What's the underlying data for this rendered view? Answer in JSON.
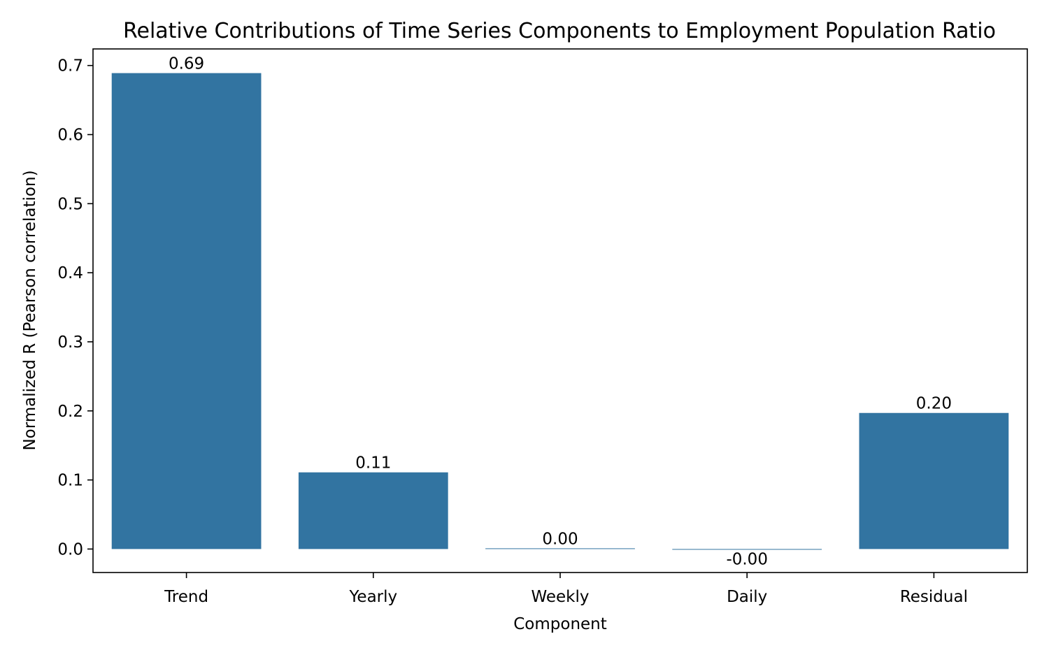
{
  "chart_data": {
    "type": "bar",
    "title": "Relative Contributions of Time Series Components to Employment Population Ratio",
    "xlabel": "Component",
    "ylabel": "Normalized R (Pearson correlation)",
    "categories": [
      "Trend",
      "Yearly",
      "Weekly",
      "Daily",
      "Residual"
    ],
    "values": [
      0.689,
      0.111,
      0.001,
      -0.0002,
      0.197
    ],
    "data_labels": [
      "0.69",
      "0.11",
      "0.00",
      "-0.00",
      "0.20"
    ],
    "yticks": [
      0.0,
      0.1,
      0.2,
      0.3,
      0.4,
      0.5,
      0.6,
      0.7
    ],
    "ytick_labels": [
      "0.0",
      "0.1",
      "0.2",
      "0.3",
      "0.4",
      "0.5",
      "0.6",
      "0.7"
    ],
    "ylim": [
      -0.034,
      0.724
    ],
    "grid": false,
    "legend": "none",
    "bar_color": "#3274a1"
  }
}
